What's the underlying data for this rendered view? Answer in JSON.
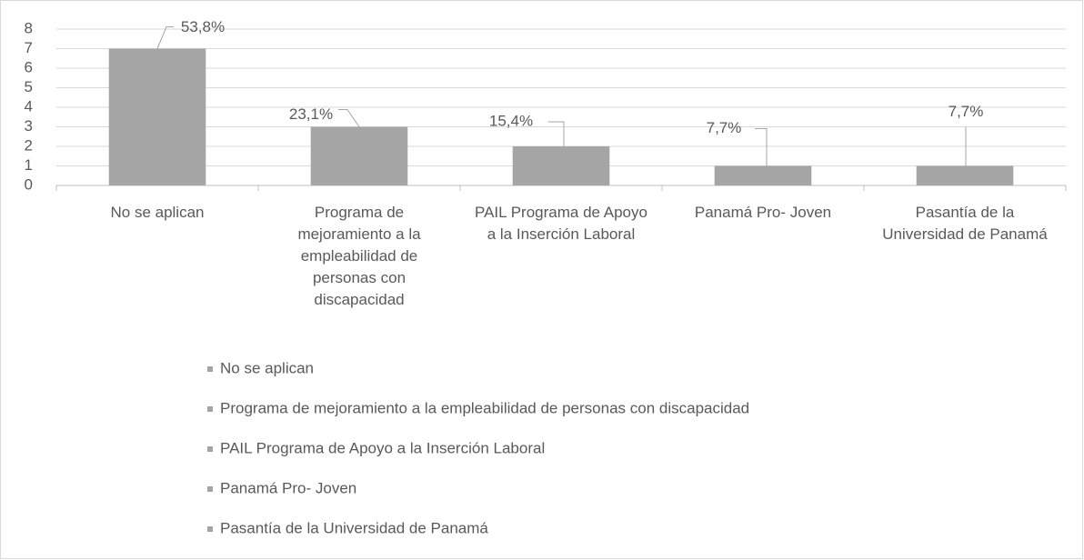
{
  "chart_data": {
    "type": "bar",
    "categories": [
      "No se aplican",
      "Programa de mejoramiento a la empleabilidad de personas con discapacidad",
      "PAIL Programa de Apoyo a la Inserción Laboral",
      "Panamá Pro- Joven",
      "Pasantía de la Universidad de Panamá"
    ],
    "values": [
      7,
      3,
      2,
      1,
      1
    ],
    "value_labels": [
      "53,8%",
      "23,1%",
      "15,4%",
      "7,7%",
      "7,7%"
    ],
    "color": "#a5a5a5",
    "ylim": [
      0,
      8
    ],
    "yticks": [
      0,
      1,
      2,
      3,
      4,
      5,
      6,
      7,
      8
    ],
    "grid": true,
    "legend": "bottom"
  }
}
